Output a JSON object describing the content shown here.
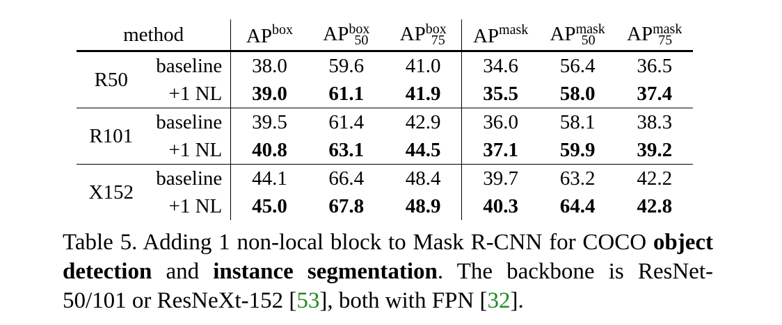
{
  "table": {
    "header": {
      "method": "method",
      "ap_prefix": "AP",
      "cols": [
        {
          "sup": "box",
          "sub": ""
        },
        {
          "sup": "box",
          "sub": "50"
        },
        {
          "sup": "box",
          "sub": "75"
        },
        {
          "sup": "mask",
          "sub": ""
        },
        {
          "sup": "mask",
          "sub": "50"
        },
        {
          "sup": "mask",
          "sub": "75"
        }
      ]
    },
    "groups": [
      {
        "backbone": "R50",
        "rows": [
          {
            "method": "baseline",
            "values": [
              "38.0",
              "59.6",
              "41.0",
              "34.6",
              "56.4",
              "36.5"
            ]
          },
          {
            "method": "+1 NL",
            "values": [
              "39.0",
              "61.1",
              "41.9",
              "35.5",
              "58.0",
              "37.4"
            ]
          }
        ]
      },
      {
        "backbone": "R101",
        "rows": [
          {
            "method": "baseline",
            "values": [
              "39.5",
              "61.4",
              "42.9",
              "36.0",
              "58.1",
              "38.3"
            ]
          },
          {
            "method": "+1 NL",
            "values": [
              "40.8",
              "63.1",
              "44.5",
              "37.1",
              "59.9",
              "39.2"
            ]
          }
        ]
      },
      {
        "backbone": "X152",
        "rows": [
          {
            "method": "baseline",
            "values": [
              "44.1",
              "66.4",
              "48.4",
              "39.7",
              "63.2",
              "42.2"
            ]
          },
          {
            "method": "+1 NL",
            "values": [
              "45.0",
              "67.8",
              "48.9",
              "40.3",
              "64.4",
              "42.8"
            ]
          }
        ]
      }
    ]
  },
  "caption": {
    "part1": "Table 5. Adding 1 non-local block to Mask R-CNN for COCO ",
    "bold1": "object detection",
    "part2": " and ",
    "bold2": "instance segmentation",
    "part3": ".  The backbone is ResNet-50/101 or ResNeXt-152 [",
    "cite1": "53",
    "part4": "], both with FPN [",
    "cite2": "32",
    "part5": "]."
  },
  "colors": {
    "text": "#000000",
    "citation": "#1f8a1f"
  }
}
